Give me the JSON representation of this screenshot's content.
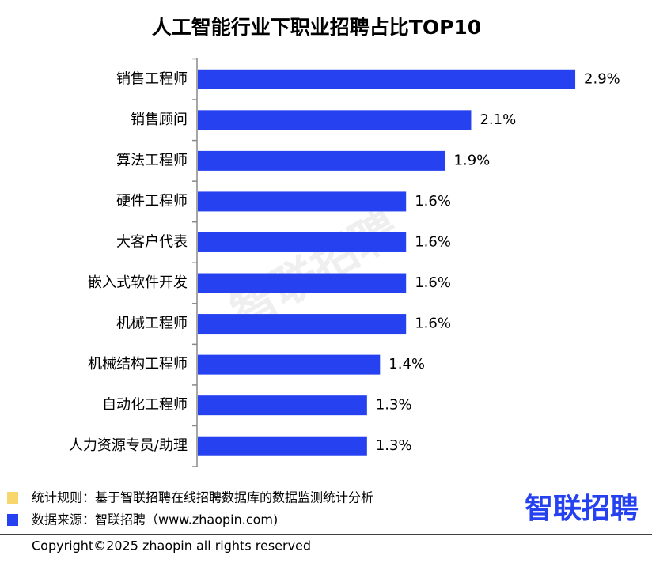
{
  "chart_data": {
    "type": "bar",
    "orientation": "horizontal",
    "title": "人工智能行业下职业招聘占比TOP10",
    "categories": [
      "销售工程师",
      "销售顾问",
      "算法工程师",
      "硬件工程师",
      "大客户代表",
      "嵌入式软件开发",
      "机械工程师",
      "机械结构工程师",
      "自动化工程师",
      "人力资源专员/助理"
    ],
    "values": [
      2.9,
      2.1,
      1.9,
      1.6,
      1.6,
      1.6,
      1.6,
      1.4,
      1.3,
      1.3
    ],
    "value_labels": [
      "2.9%",
      "2.1%",
      "1.9%",
      "1.6%",
      "1.6%",
      "1.6%",
      "1.6%",
      "1.4%",
      "1.3%",
      "1.3%"
    ],
    "color": "#2541f0"
  },
  "watermark": "智联招聘",
  "footer": {
    "notes": [
      {
        "text": "统计规则：基于智联招聘在线招聘数据库的数据监测统计分析",
        "color": "#f7d66b"
      },
      {
        "text": "数据来源：智联招聘（www.zhaopin.com)",
        "color": "#2541f0"
      }
    ],
    "logo": "智联招聘",
    "copyright": "Copyright©2025 zhaopin all rights reserved"
  }
}
